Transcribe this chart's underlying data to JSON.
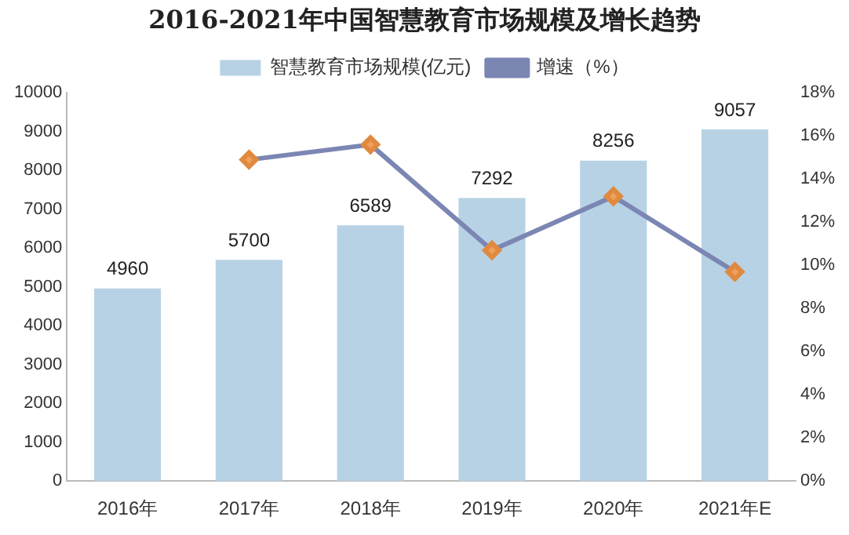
{
  "chart_data": {
    "type": "bar",
    "title": "2016-2021年中国智慧教育市场规模及增长趋势",
    "categories": [
      "2016年",
      "2017年",
      "2018年",
      "2019年",
      "2020年",
      "2021年E"
    ],
    "series": [
      {
        "name": "智慧教育市场规模(亿元)",
        "color": "#b7d2e5",
        "values": [
          4960,
          5700,
          6589,
          7292,
          8256,
          9057
        ],
        "value_labels": [
          "4960",
          "5700",
          "6589",
          "7292",
          "8256",
          "9057"
        ]
      },
      {
        "name": "增速（%）",
        "type": "line",
        "axis": "y2",
        "color": "#7b86b3",
        "marker": "diamond",
        "values": [
          null,
          14.9,
          15.6,
          10.7,
          13.2,
          9.7
        ]
      }
    ],
    "ylim": [
      0,
      10000
    ],
    "yticks": [
      0,
      1000,
      2000,
      3000,
      4000,
      5000,
      6000,
      7000,
      8000,
      9000,
      10000
    ],
    "y2lim": [
      0,
      18
    ],
    "y2ticks": [
      {
        "value": 0,
        "label": "0%"
      },
      {
        "value": 2,
        "label": "2%"
      },
      {
        "value": 4,
        "label": "4%"
      },
      {
        "value": 6,
        "label": "6%"
      },
      {
        "value": 8,
        "label": "8%"
      },
      {
        "value": 10,
        "label": "10%"
      },
      {
        "value": 12,
        "label": "12%"
      },
      {
        "value": 14,
        "label": "14%"
      },
      {
        "value": 16,
        "label": "16%"
      },
      {
        "value": 18,
        "label": "18%"
      }
    ],
    "grid": false,
    "legend": "top"
  }
}
